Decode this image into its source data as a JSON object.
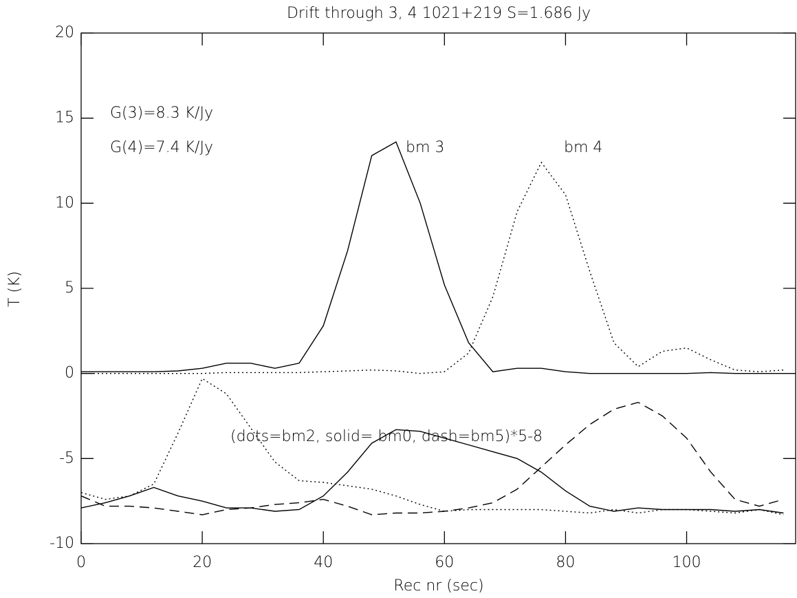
{
  "chart_data": {
    "type": "line",
    "title": "Drift through 3, 4 1021+219 S=1.686 Jy",
    "x_label": "Rec nr (sec)",
    "y_label": "T (K)",
    "annotations": [
      "G(3)=8.3 K/Jy",
      "G(4)=7.4 K/Jy",
      "bm 3",
      "bm 4",
      "(dots=bm2, solid= bm0, dash=bm5)*5-8"
    ],
    "x": [
      0,
      4,
      8,
      12,
      16,
      20,
      24,
      28,
      32,
      36,
      40,
      44,
      48,
      52,
      56,
      60,
      64,
      68,
      72,
      76,
      80,
      84,
      88,
      92,
      96,
      100,
      104,
      108,
      112,
      116
    ],
    "series": [
      {
        "color": "#000000",
        "style": "solid",
        "values": [
          0.1,
          0.1,
          0.1,
          0.1,
          0.15,
          0.3,
          0.6,
          0.6,
          0.3,
          0.6,
          2.8,
          7.2,
          12.8,
          13.6,
          10.0,
          5.2,
          1.8,
          0.1,
          0.3,
          0.3,
          0.1,
          0,
          0,
          0,
          0,
          0,
          0.05,
          0,
          0,
          0
        ]
      },
      {
        "color": "#000000",
        "style": "dotted",
        "values": [
          0,
          0,
          0,
          0,
          0,
          0,
          0.05,
          0.05,
          0.05,
          0.05,
          0.1,
          0.15,
          0.2,
          0.15,
          0,
          0.1,
          1.2,
          4.5,
          9.5,
          12.4,
          10.5,
          6,
          1.8,
          0.4,
          1.3,
          1.5,
          0.8,
          0.2,
          0.1,
          0.2
        ]
      },
      {
        "color": "#000000",
        "style": "dotted",
        "values": [
          -7,
          -7.4,
          -7.2,
          -6.5,
          -3.5,
          -0.3,
          -1.2,
          -3.2,
          -5.2,
          -6.3,
          -6.4,
          -6.6,
          -6.8,
          -7.2,
          -7.7,
          -8.1,
          -8,
          -8,
          -8,
          -8,
          -8.1,
          -8.2,
          -8,
          -8.2,
          -8,
          -8,
          -8.1,
          -8.2,
          -8,
          -8.3
        ]
      },
      {
        "color": "#000000",
        "style": "solid",
        "values": [
          -7.9,
          -7.6,
          -7.2,
          -6.7,
          -7.2,
          -7.5,
          -7.9,
          -7.9,
          -8.1,
          -8.0,
          -7.2,
          -5.8,
          -4.1,
          -3.3,
          -3.4,
          -3.8,
          -4.2,
          -4.6,
          -5.0,
          -5.8,
          -6.9,
          -7.8,
          -8.1,
          -7.9,
          -8,
          -8,
          -8,
          -8.1,
          -8,
          -8.2
        ]
      },
      {
        "color": "#000000",
        "style": "dashed",
        "values": [
          -7.2,
          -7.8,
          -7.8,
          -7.9,
          -8.1,
          -8.3,
          -8.0,
          -7.9,
          -7.7,
          -7.6,
          -7.4,
          -7.8,
          -8.3,
          -8.2,
          -8.2,
          -8.1,
          -7.9,
          -7.6,
          -6.8,
          -5.5,
          -4.2,
          -3.0,
          -2.1,
          -1.7,
          -2.5,
          -3.8,
          -5.8,
          -7.4,
          -7.8,
          -7.4
        ]
      }
    ],
    "xlim": [
      0,
      118
    ],
    "ylim": [
      -10,
      20
    ],
    "xticks": [
      0,
      20,
      40,
      60,
      80,
      100
    ],
    "yticks": [
      -10,
      -5,
      0,
      5,
      10,
      15,
      20
    ],
    "grid": false
  }
}
